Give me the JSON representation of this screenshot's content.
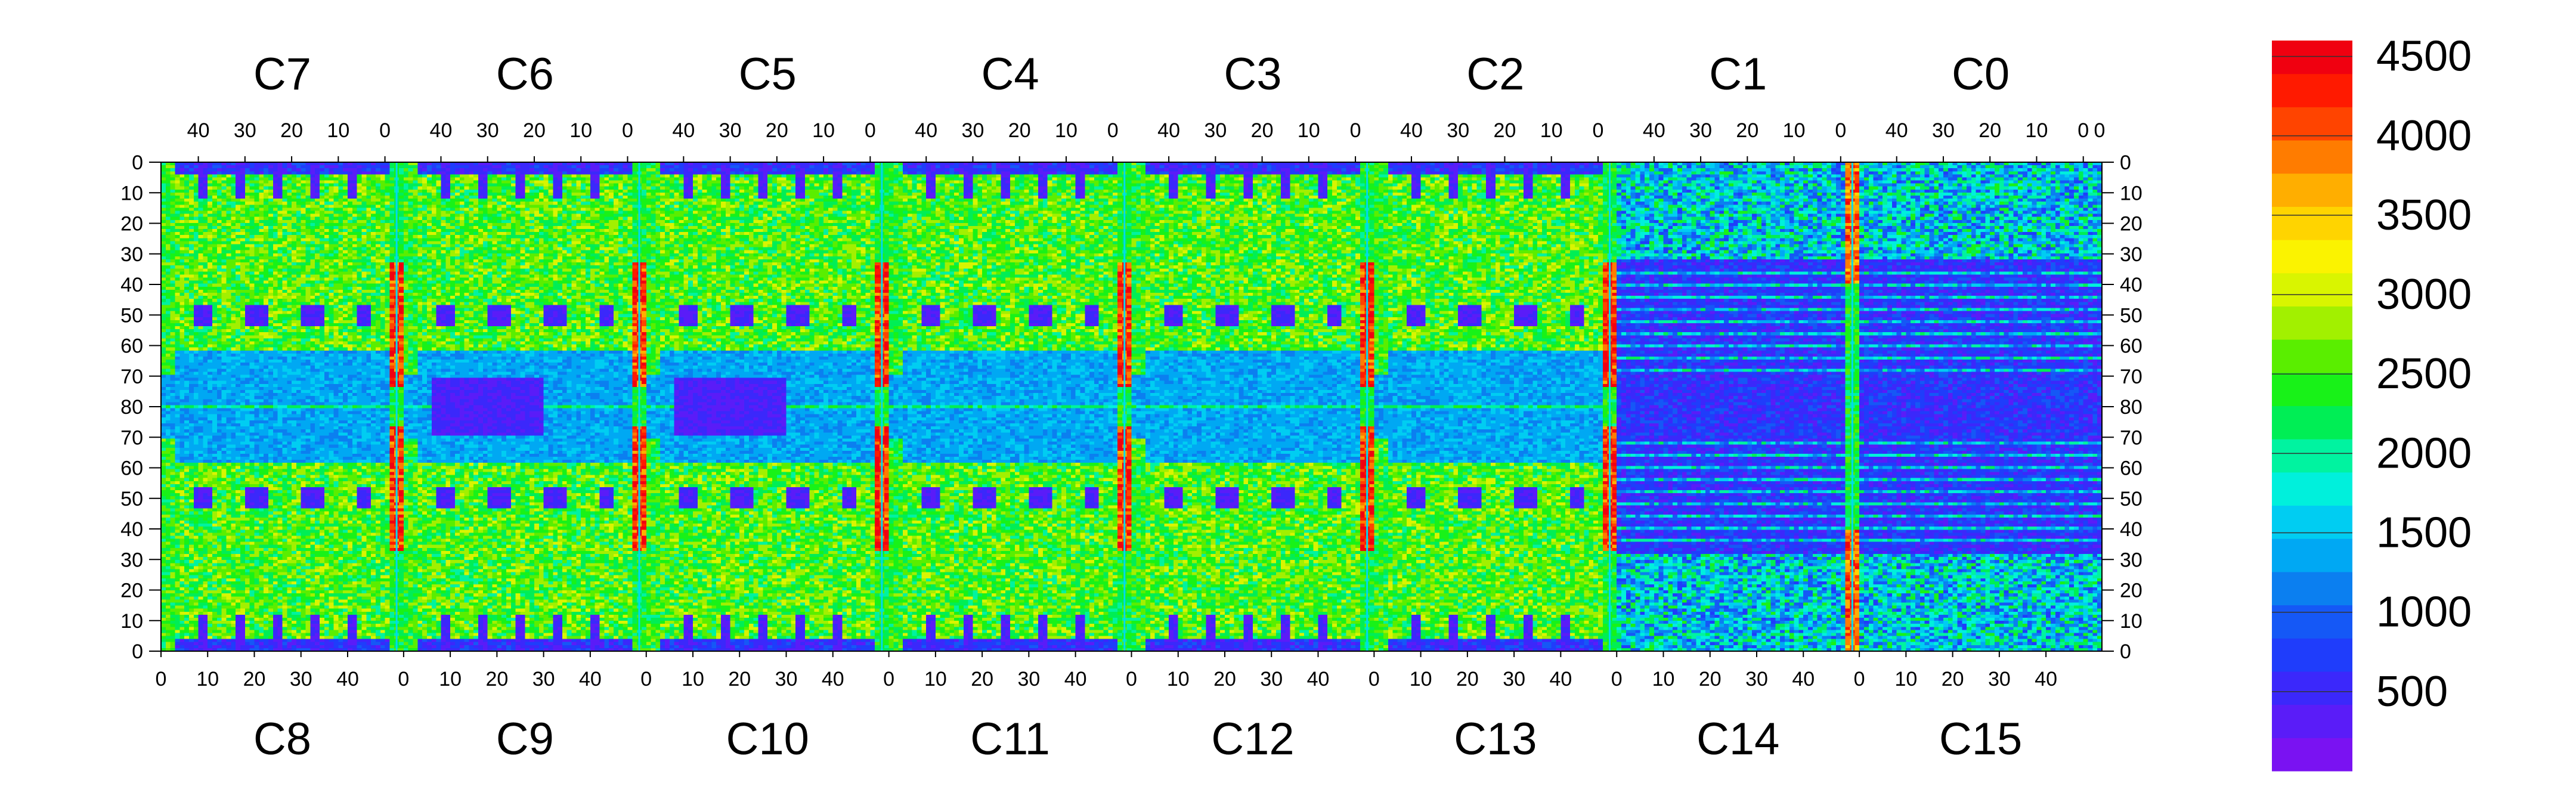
{
  "chart_data": {
    "type": "heatmap",
    "title": "",
    "xlabel": "",
    "ylabel": "",
    "top_chips": [
      "C7",
      "C6",
      "C5",
      "C4",
      "C3",
      "C2",
      "C1",
      "C0"
    ],
    "bottom_chips": [
      "C8",
      "C9",
      "C10",
      "C11",
      "C12",
      "C13",
      "C14",
      "C15"
    ],
    "top_x_ticks": [
      "40",
      "30",
      "20",
      "10",
      "0"
    ],
    "bottom_x_ticks": [
      "0",
      "10",
      "20",
      "30",
      "40"
    ],
    "left_y_ticks": [
      "0",
      "10",
      "20",
      "30",
      "40",
      "50",
      "60",
      "70",
      "80",
      "70",
      "60",
      "50",
      "40",
      "30",
      "20",
      "10",
      "0"
    ],
    "right_y_ticks": [
      "0",
      "10",
      "20",
      "30",
      "40",
      "50",
      "60",
      "70",
      "80",
      "70",
      "60",
      "50",
      "40",
      "30",
      "20",
      "10",
      "0"
    ],
    "columns_per_chip": 52,
    "rows_per_half": 80,
    "colorbar": {
      "min": 0,
      "max": 4600,
      "ticks": [
        500,
        1000,
        1500,
        2000,
        2500,
        3000,
        3500,
        4000,
        4500
      ],
      "colors": [
        "#7a12f2",
        "#5a1cf8",
        "#3b28fb",
        "#1f3dfb",
        "#1558f6",
        "#0b7ff0",
        "#00a8f3",
        "#00cdf2",
        "#00f0dc",
        "#00f3a0",
        "#00ee55",
        "#18f218",
        "#5aee00",
        "#a2f000",
        "#d9f500",
        "#fbf300",
        "#ffd400",
        "#ffae00",
        "#ff7c00",
        "#ff4400",
        "#ff1a00",
        "#f00010"
      ]
    },
    "features": {
      "red_stripe_chips": [
        "C6",
        "C5",
        "C4",
        "C3",
        "C2",
        "C1",
        "C9",
        "C10",
        "C11",
        "C12",
        "C13",
        "C14"
      ],
      "dense_blue_region_chips": [
        "C2",
        "C1",
        "C0",
        "C13",
        "C14",
        "C15"
      ],
      "cyan_row": 80
    }
  }
}
